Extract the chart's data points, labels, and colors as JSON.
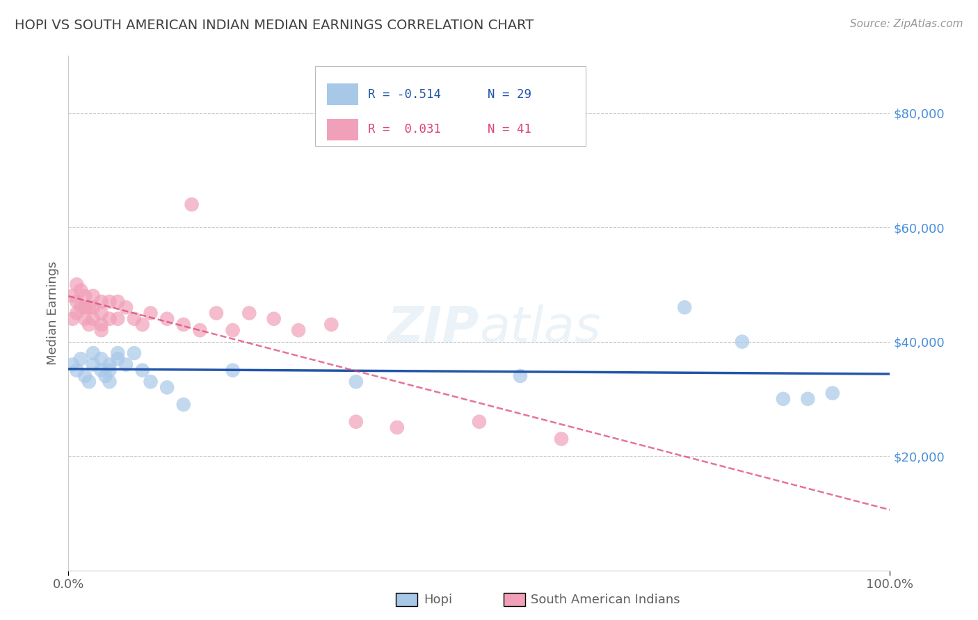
{
  "title": "HOPI VS SOUTH AMERICAN INDIAN MEDIAN EARNINGS CORRELATION CHART",
  "source": "Source: ZipAtlas.com",
  "ylabel": "Median Earnings",
  "xlim": [
    0,
    1.0
  ],
  "ylim": [
    0,
    90000
  ],
  "yticks": [
    20000,
    40000,
    60000,
    80000
  ],
  "ytick_labels": [
    "$20,000",
    "$40,000",
    "$60,000",
    "$80,000"
  ],
  "hopi_color": "#a8c8e8",
  "sa_color": "#f0a0b8",
  "trend_blue": "#2255aa",
  "trend_pink": "#dd4477",
  "background": "#ffffff",
  "grid_color": "#c8c8c8",
  "title_color": "#404040",
  "axis_label_color": "#606060",
  "right_tick_color": "#4a90d9",
  "hopi_scatter": {
    "x": [
      0.005,
      0.01,
      0.015,
      0.02,
      0.025,
      0.03,
      0.03,
      0.04,
      0.04,
      0.045,
      0.05,
      0.05,
      0.05,
      0.06,
      0.06,
      0.07,
      0.08,
      0.09,
      0.1,
      0.12,
      0.14,
      0.2,
      0.35,
      0.55,
      0.75,
      0.82,
      0.87,
      0.9,
      0.93
    ],
    "y": [
      36000,
      35000,
      37000,
      34000,
      33000,
      38000,
      36000,
      37000,
      35000,
      34000,
      33000,
      36000,
      35000,
      38000,
      37000,
      36000,
      38000,
      35000,
      33000,
      32000,
      29000,
      35000,
      33000,
      34000,
      46000,
      40000,
      30000,
      30000,
      31000
    ]
  },
  "sa_scatter": {
    "x": [
      0.005,
      0.005,
      0.01,
      0.01,
      0.01,
      0.015,
      0.015,
      0.02,
      0.02,
      0.02,
      0.025,
      0.025,
      0.03,
      0.03,
      0.03,
      0.04,
      0.04,
      0.04,
      0.04,
      0.05,
      0.05,
      0.06,
      0.06,
      0.07,
      0.08,
      0.09,
      0.1,
      0.12,
      0.14,
      0.16,
      0.18,
      0.2,
      0.22,
      0.25,
      0.28,
      0.32,
      0.35,
      0.4,
      0.5,
      0.6,
      0.15
    ],
    "y": [
      48000,
      44000,
      50000,
      47000,
      45000,
      49000,
      46000,
      48000,
      46000,
      44000,
      46000,
      43000,
      48000,
      46000,
      44000,
      47000,
      45000,
      43000,
      42000,
      47000,
      44000,
      47000,
      44000,
      46000,
      44000,
      43000,
      45000,
      44000,
      43000,
      42000,
      45000,
      42000,
      45000,
      44000,
      42000,
      43000,
      26000,
      25000,
      26000,
      23000,
      64000
    ]
  }
}
